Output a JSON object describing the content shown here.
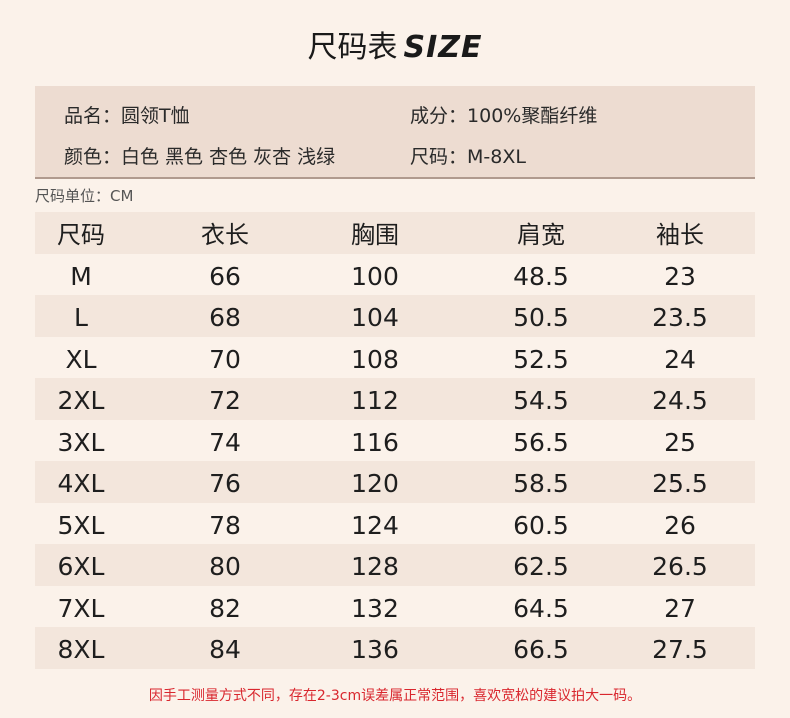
{
  "title": {
    "cn": "尺码表",
    "en": "SIZE"
  },
  "info": {
    "name_label": "品名：",
    "name_value": "圆领T恤",
    "material_label": "成分：",
    "material_value": "100%聚酯纤维",
    "color_label": "颜色：",
    "color_value": "白色 黑色 杏色 灰杏 浅绿",
    "size_label": "尺码：",
    "size_value": "M-8XL"
  },
  "unit": "尺码单位：CM",
  "table": {
    "headers": [
      "尺码",
      "衣长",
      "胸围",
      "肩宽",
      "袖长"
    ],
    "rows": [
      [
        "M",
        "66",
        "100",
        "48.5",
        "23"
      ],
      [
        "L",
        "68",
        "104",
        "50.5",
        "23.5"
      ],
      [
        "XL",
        "70",
        "108",
        "52.5",
        "24"
      ],
      [
        "2XL",
        "72",
        "112",
        "54.5",
        "24.5"
      ],
      [
        "3XL",
        "74",
        "116",
        "56.5",
        "25"
      ],
      [
        "4XL",
        "76",
        "120",
        "58.5",
        "25.5"
      ],
      [
        "5XL",
        "78",
        "124",
        "60.5",
        "26"
      ],
      [
        "6XL",
        "80",
        "128",
        "62.5",
        "26.5"
      ],
      [
        "7XL",
        "82",
        "132",
        "64.5",
        "27"
      ],
      [
        "8XL",
        "84",
        "136",
        "66.5",
        "27.5"
      ]
    ]
  },
  "note": "因手工测量方式不同，存在2-3cm误差属正常范围，喜欢宽松的建议拍大一码。",
  "colors": {
    "background": "#fbf2ea",
    "info_box": "#eddcd1",
    "row_shade": "#f3e6dc",
    "note": "#d9272e"
  }
}
